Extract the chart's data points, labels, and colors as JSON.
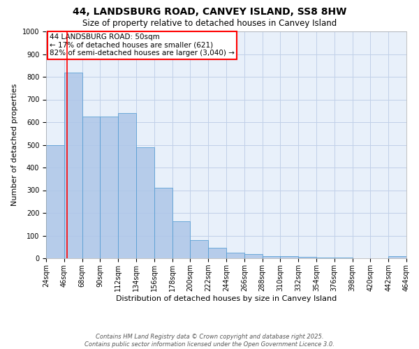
{
  "title_line1": "44, LANDSBURG ROAD, CANVEY ISLAND, SS8 8HW",
  "title_line2": "Size of property relative to detached houses in Canvey Island",
  "xlabel": "Distribution of detached houses by size in Canvey Island",
  "ylabel": "Number of detached properties",
  "bin_edges": [
    24,
    46,
    68,
    90,
    112,
    134,
    156,
    178,
    200,
    222,
    244,
    266,
    288,
    310,
    332,
    354,
    376,
    398,
    420,
    442,
    464
  ],
  "bar_heights": [
    500,
    820,
    625,
    625,
    640,
    490,
    312,
    162,
    80,
    45,
    25,
    18,
    10,
    8,
    5,
    3,
    2,
    1,
    0,
    8
  ],
  "bar_color": "#aec6e8",
  "bar_edge_color": "#5a9fd4",
  "property_line_x": 50,
  "property_line_color": "red",
  "ylim": [
    0,
    1000
  ],
  "yticks": [
    0,
    100,
    200,
    300,
    400,
    500,
    600,
    700,
    800,
    900,
    1000
  ],
  "grid_color": "#c0d0e8",
  "bg_color": "#e8f0fa",
  "annotation_text": "44 LANDSBURG ROAD: 50sqm\n← 17% of detached houses are smaller (621)\n82% of semi-detached houses are larger (3,040) →",
  "footer_line1": "Contains HM Land Registry data © Crown copyright and database right 2025.",
  "footer_line2": "Contains public sector information licensed under the Open Government Licence 3.0.",
  "title_fontsize": 10,
  "subtitle_fontsize": 8.5,
  "axis_label_fontsize": 8,
  "tick_fontsize": 7,
  "annotation_fontsize": 7.5,
  "footer_fontsize": 6
}
